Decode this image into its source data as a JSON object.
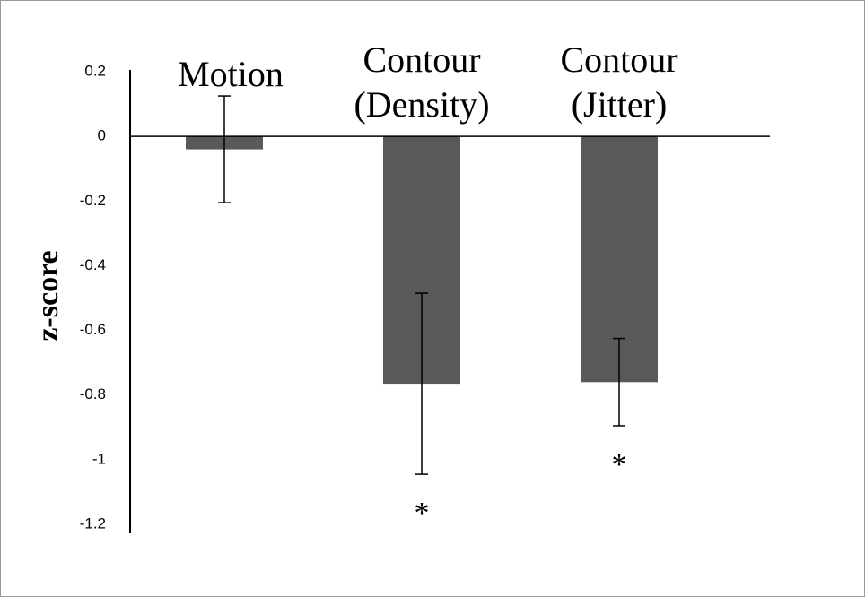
{
  "chart_data": {
    "type": "bar",
    "y_label": "z-score",
    "categories": [
      [
        "Motion"
      ],
      [
        "Contour",
        "(Density)"
      ],
      [
        "Contour",
        "(Jitter)"
      ]
    ],
    "values": [
      -0.04,
      -0.765,
      -0.76
    ],
    "errors": [
      0.165,
      0.28,
      0.135
    ],
    "color": "#595959",
    "ylim": [
      -1.2,
      0.2
    ],
    "yticks": [
      0.2,
      0,
      -0.2,
      -0.4,
      -0.6,
      -0.8,
      -1,
      -1.2
    ],
    "annotations": [
      {
        "text": "*",
        "category": 1
      },
      {
        "text": "*",
        "category": 2
      }
    ]
  }
}
